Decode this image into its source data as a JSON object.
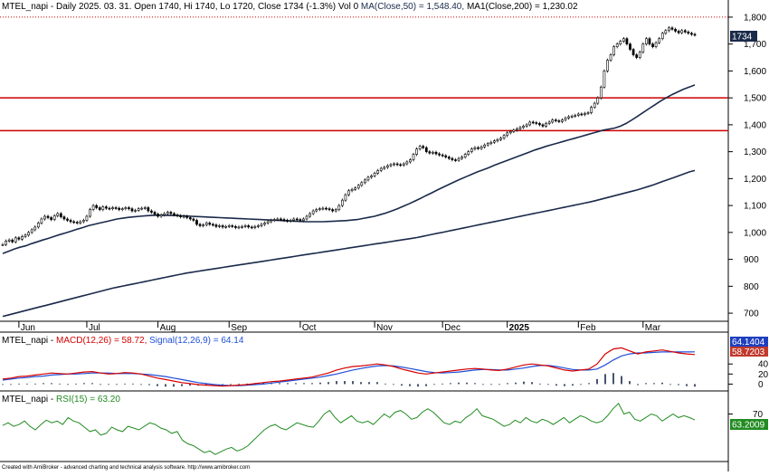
{
  "colors": {
    "background": "#ffffff",
    "candle": "#000000",
    "ma": "#1a2a4a",
    "hline": "#cc0000",
    "dotted": "#cc0000",
    "macd": "#d40000",
    "signal": "#1f4fd8",
    "hist": "#1a2a4a",
    "rsi": "#228b22",
    "price_badge": "#1a2a4a",
    "macd_badge": "#1f3fbf",
    "macd_badge2": "#c0392b",
    "rsi_badge": "#228b22",
    "axis": "#000000"
  },
  "header": {
    "price_title": "MTEL_napi - Daily 2025. 03. 31. Open 1740, Hi 1740, Lo 1720, Close 1734 (-1.3%) Vol 0 ",
    "ma50_label": "MA(Close,50) = 1,548.40, ",
    "ma200_label": "MA1(Close,200) = 1,230.02",
    "macd_prefix": "MTEL_napi - ",
    "macd_label": "MACD(12,26) = 58.72, ",
    "signal_label": "Signal(12,26,9) = 64.14",
    "rsi_prefix": "MTEL_napi - ",
    "rsi_label": "RSI(15) = 63.20",
    "footer": "Created with AmiBroker - advanced charting and technical analysis software. http://www.amibroker.com"
  },
  "badges": {
    "price": "1734",
    "macd_signal": "64.1404",
    "macd": "58.7203",
    "rsi": "63.2009"
  },
  "chart_data": [
    {
      "type": "candlestick",
      "name": "price",
      "title": "MTEL_napi - Daily 2025. 03. 31. Open 1740, Hi 1740, Lo 1720, Close 1734 (-1.3%) Vol 0",
      "ylim": [
        670,
        1830
      ],
      "yticks": [
        "700",
        "800",
        "900",
        "1,000",
        "1,100",
        "1,200",
        "1,300",
        "1,400",
        "1,500",
        "1,600",
        "1,700",
        "1,800"
      ],
      "ytick_values": [
        700,
        800,
        900,
        1000,
        1100,
        1200,
        1300,
        1400,
        1500,
        1600,
        1700,
        1800
      ],
      "month_labels": [
        "Jun",
        "Jul",
        "Aug",
        "Sep",
        "Oct",
        "Nov",
        "Dec",
        "2025",
        "Feb",
        "Mar"
      ],
      "month_start_index": [
        5,
        26,
        48,
        70,
        92,
        115,
        136,
        156,
        178,
        198
      ],
      "hlines": [
        1500,
        1378
      ],
      "dotted_line": 1800,
      "close": [
        955,
        968,
        972,
        965,
        980,
        975,
        985,
        990,
        1000,
        1010,
        1020,
        1035,
        1050,
        1060,
        1055,
        1048,
        1062,
        1070,
        1058,
        1050,
        1045,
        1040,
        1038,
        1035,
        1040,
        1045,
        1060,
        1085,
        1100,
        1092,
        1085,
        1095,
        1090,
        1088,
        1092,
        1090,
        1085,
        1088,
        1092,
        1088,
        1080,
        1082,
        1088,
        1090,
        1092,
        1080,
        1075,
        1068,
        1060,
        1065,
        1070,
        1075,
        1070,
        1065,
        1062,
        1058,
        1060,
        1055,
        1050,
        1045,
        1030,
        1025,
        1028,
        1035,
        1030,
        1028,
        1022,
        1025,
        1020,
        1022,
        1025,
        1022,
        1018,
        1020,
        1022,
        1025,
        1020,
        1018,
        1022,
        1025,
        1030,
        1035,
        1040,
        1045,
        1048,
        1050,
        1048,
        1045,
        1042,
        1045,
        1050,
        1048,
        1044,
        1050,
        1060,
        1070,
        1080,
        1085,
        1088,
        1090,
        1088,
        1085,
        1080,
        1085,
        1100,
        1120,
        1140,
        1155,
        1160,
        1165,
        1175,
        1185,
        1195,
        1205,
        1210,
        1220,
        1230,
        1238,
        1242,
        1248,
        1252,
        1255,
        1252,
        1250,
        1255,
        1262,
        1270,
        1290,
        1310,
        1320,
        1315,
        1300,
        1295,
        1298,
        1292,
        1288,
        1285,
        1280,
        1275,
        1270,
        1268,
        1275,
        1280,
        1290,
        1300,
        1310,
        1315,
        1312,
        1318,
        1325,
        1330,
        1335,
        1340,
        1345,
        1350,
        1360,
        1370,
        1375,
        1380,
        1385,
        1390,
        1395,
        1400,
        1410,
        1408,
        1405,
        1400,
        1395,
        1405,
        1410,
        1418,
        1415,
        1412,
        1418,
        1425,
        1430,
        1432,
        1435,
        1440,
        1438,
        1442,
        1445,
        1465,
        1480,
        1500,
        1540,
        1600,
        1640,
        1660,
        1690,
        1700,
        1710,
        1720,
        1700,
        1680,
        1660,
        1650,
        1670,
        1700,
        1720,
        1700,
        1690,
        1705,
        1720,
        1740,
        1750,
        1760,
        1755,
        1748,
        1742,
        1750,
        1745,
        1740,
        1736,
        1734
      ],
      "ma50": [
        922,
        930,
        938,
        945,
        950,
        958,
        965,
        972,
        978,
        985,
        992,
        998,
        1005,
        1012,
        1018,
        1025,
        1030,
        1035,
        1040,
        1045,
        1050,
        1053,
        1056,
        1058,
        1060,
        1062,
        1063,
        1064,
        1064,
        1063,
        1063,
        1062,
        1061,
        1060,
        1059,
        1058,
        1057,
        1056,
        1055,
        1054,
        1053,
        1052,
        1051,
        1050,
        1049,
        1048,
        1047,
        1046,
        1045,
        1044,
        1043,
        1042,
        1041,
        1040,
        1040,
        1040,
        1040,
        1041,
        1042,
        1043,
        1044,
        1046,
        1048,
        1052,
        1056,
        1060,
        1066,
        1072,
        1080,
        1088,
        1097,
        1106,
        1116,
        1126,
        1137,
        1147,
        1158,
        1168,
        1178,
        1188,
        1198,
        1207,
        1216,
        1225,
        1233,
        1241,
        1250,
        1258,
        1266,
        1274,
        1282,
        1290,
        1298,
        1306,
        1313,
        1320,
        1326,
        1332,
        1338,
        1344,
        1350,
        1356,
        1362,
        1368,
        1374,
        1380,
        1384,
        1388,
        1395,
        1405,
        1418,
        1432,
        1446,
        1460,
        1474,
        1488,
        1500,
        1512,
        1522,
        1532,
        1540,
        1548
      ],
      "ma50_start_index": 0,
      "ma200": [
        688,
        693,
        698,
        703,
        708,
        713,
        718,
        723,
        728,
        733,
        738,
        743,
        748,
        753,
        758,
        763,
        768,
        773,
        778,
        783,
        788,
        793,
        797,
        801,
        805,
        809,
        813,
        817,
        821,
        825,
        829,
        833,
        837,
        841,
        845,
        849,
        852,
        855,
        858,
        861,
        864,
        867,
        870,
        873,
        876,
        879,
        882,
        885,
        888,
        891,
        894,
        897,
        900,
        903,
        906,
        909,
        912,
        915,
        918,
        921,
        924,
        927,
        930,
        933,
        936,
        939,
        942,
        945,
        948,
        951,
        954,
        957,
        960,
        963,
        966,
        969,
        972,
        975,
        978,
        981,
        985,
        989,
        993,
        997,
        1001,
        1005,
        1009,
        1013,
        1017,
        1021,
        1025,
        1029,
        1033,
        1037,
        1041,
        1045,
        1049,
        1053,
        1057,
        1061,
        1065,
        1069,
        1073,
        1077,
        1081,
        1085,
        1089,
        1093,
        1097,
        1101,
        1105,
        1109,
        1113,
        1118,
        1123,
        1128,
        1133,
        1138,
        1143,
        1148,
        1153,
        1158,
        1164,
        1170,
        1176,
        1183,
        1190,
        1197,
        1204,
        1211,
        1218,
        1225,
        1230
      ]
    },
    {
      "type": "line",
      "name": "macd",
      "title": "MTEL_napi - MACD(12,26) = 58.72, Signal(12,26,9) = 64.14",
      "ylim": [
        -10,
        80
      ],
      "yticks": [
        "0",
        "20",
        "40"
      ],
      "ytick_values": [
        0,
        20,
        40
      ],
      "series": [
        {
          "name": "MACD(12,26)",
          "values": [
            10,
            12,
            15,
            16,
            18,
            20,
            22,
            21,
            20,
            22,
            24,
            25,
            22,
            20,
            21,
            23,
            22,
            20,
            16,
            12,
            9,
            6,
            3,
            1,
            -1,
            -2,
            -3,
            -4,
            -3,
            -2,
            -1,
            1,
            3,
            5,
            6,
            8,
            10,
            12,
            14,
            18,
            22,
            28,
            32,
            35,
            36,
            38,
            40,
            38,
            35,
            30,
            26,
            22,
            20,
            22,
            24,
            26,
            28,
            30,
            31,
            30,
            28,
            27,
            30,
            34,
            38,
            40,
            38,
            36,
            32,
            28,
            26,
            28,
            30,
            40,
            60,
            70,
            72,
            66,
            60,
            64,
            66,
            68,
            65,
            62,
            60,
            58.72
          ]
        },
        {
          "name": "Signal(12,26,9)",
          "values": [
            8,
            10,
            12,
            13,
            15,
            16,
            18,
            19,
            20,
            20,
            21,
            22,
            22,
            22,
            21,
            21,
            21,
            20,
            19,
            17,
            15,
            12,
            9,
            6,
            3,
            1,
            -1,
            -2,
            -3,
            -3,
            -2,
            -1,
            0,
            2,
            4,
            6,
            8,
            10,
            12,
            14,
            17,
            20,
            24,
            28,
            31,
            34,
            36,
            37,
            36,
            34,
            31,
            28,
            25,
            23,
            22,
            23,
            24,
            26,
            28,
            29,
            29,
            28,
            28,
            30,
            32,
            35,
            37,
            37,
            35,
            32,
            29,
            28,
            28,
            30,
            38,
            48,
            56,
            60,
            62,
            62,
            63,
            64,
            64,
            64,
            64,
            64.14
          ]
        }
      ],
      "histogram": [
        0,
        0,
        1,
        1,
        1,
        2,
        2,
        1,
        0,
        1,
        2,
        2,
        0,
        -1,
        0,
        1,
        1,
        0,
        -2,
        -4,
        -5,
        -5,
        -4,
        -3,
        -3,
        -2,
        -2,
        -2,
        0,
        1,
        1,
        2,
        3,
        3,
        2,
        2,
        2,
        2,
        2,
        3,
        4,
        6,
        6,
        6,
        4,
        4,
        4,
        1,
        -1,
        -3,
        -4,
        -5,
        -4,
        -1,
        1,
        2,
        3,
        3,
        2,
        0,
        -1,
        -1,
        2,
        3,
        5,
        4,
        1,
        -1,
        -3,
        -4,
        -3,
        0,
        2,
        10,
        20,
        22,
        16,
        6,
        -2,
        2,
        2,
        3,
        0,
        -2,
        -4,
        -5
      ]
    },
    {
      "type": "line",
      "name": "rsi",
      "title": "MTEL_napi - RSI(15) = 63.20",
      "ylim": [
        18,
        88
      ],
      "yticks": [
        "70"
      ],
      "ytick_values": [
        70
      ],
      "values": [
        57,
        60,
        56,
        58,
        62,
        56,
        52,
        58,
        63,
        60,
        62,
        58,
        66,
        62,
        60,
        55,
        50,
        52,
        46,
        48,
        55,
        52,
        50,
        56,
        54,
        52,
        56,
        60,
        58,
        54,
        52,
        48,
        50,
        40,
        36,
        34,
        30,
        26,
        28,
        24,
        27,
        30,
        32,
        28,
        30,
        34,
        40,
        46,
        52,
        56,
        58,
        54,
        52,
        56,
        60,
        58,
        56,
        55,
        62,
        70,
        74,
        66,
        60,
        64,
        68,
        62,
        60,
        62,
        58,
        64,
        70,
        66,
        72,
        74,
        70,
        64,
        66,
        72,
        76,
        72,
        66,
        60,
        58,
        62,
        60,
        66,
        70,
        76,
        68,
        66,
        64,
        60,
        56,
        58,
        63,
        60,
        66,
        62,
        60,
        64,
        62,
        58,
        62,
        66,
        60,
        64,
        68,
        66,
        62,
        60,
        62,
        68,
        76,
        82,
        70,
        72,
        64,
        62,
        66,
        70,
        68,
        62,
        66,
        70,
        66,
        68,
        66,
        63.2
      ]
    }
  ]
}
